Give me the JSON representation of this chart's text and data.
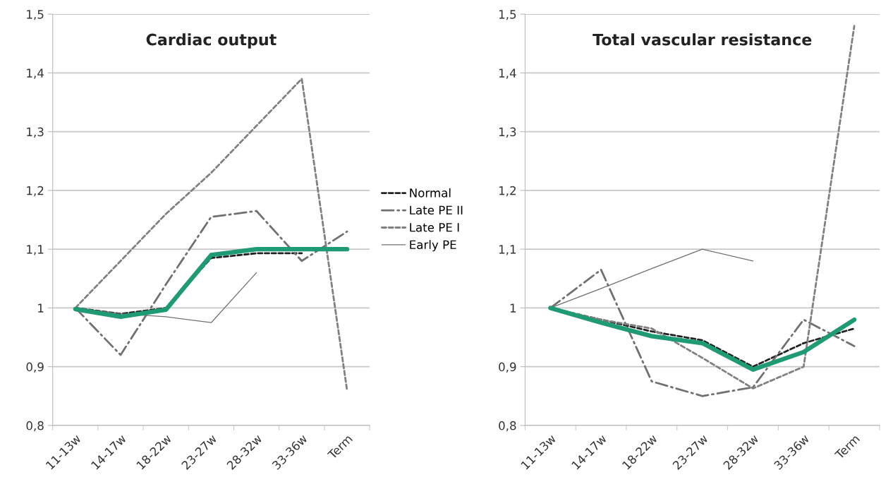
{
  "chart_data": [
    {
      "type": "line",
      "title": "Cardiac output",
      "categories": [
        "11-13w",
        "14-17w",
        "18-22w",
        "23-27w",
        "28-32w",
        "33-36w",
        "Term"
      ],
      "series": [
        {
          "name": "Normal",
          "color": "#222222",
          "line_style": "dashed",
          "values": [
            1.0,
            0.99,
            1.0,
            1.085,
            1.093,
            1.093,
            null
          ]
        },
        {
          "name": "Late PE II",
          "color": "#707070",
          "line_style": "dashdot",
          "values": [
            1.0,
            0.92,
            1.04,
            1.155,
            1.165,
            1.08,
            1.13
          ]
        },
        {
          "name": "Late PE I",
          "color": "#808080",
          "line_style": "dashed",
          "values": [
            1.0,
            1.08,
            1.16,
            1.23,
            1.31,
            1.39,
            0.86
          ]
        },
        {
          "name": "Early PE",
          "color": "#707070",
          "line_style": "solid",
          "values": [
            1.0,
            0.99,
            0.985,
            0.975,
            1.06,
            null,
            null
          ]
        },
        {
          "color": "#1e9b74",
          "line_style": "solid",
          "values": [
            0.998,
            0.985,
            0.997,
            1.09,
            1.1,
            1.1,
            1.1
          ]
        }
      ],
      "ylim": [
        0.8,
        1.5
      ],
      "yticks": [
        {
          "value": 0.8,
          "label": "0,8"
        },
        {
          "value": 0.9,
          "label": "0,9"
        },
        1,
        {
          "value": 1.1,
          "label": "1,1"
        },
        {
          "value": 1.2,
          "label": "1,2"
        },
        {
          "value": 1.3,
          "label": "1,3"
        },
        {
          "value": 1.4,
          "label": "1,4"
        },
        {
          "value": 1.5,
          "label": "1,5"
        }
      ],
      "grid": "y",
      "legend": "right",
      "marker": "none"
    },
    {
      "type": "line",
      "title": "Total vascular resistance",
      "categories": [
        "11-13w",
        "14-17w",
        "18-22w",
        "23-27w",
        "28-32w",
        "33-36w",
        "Term"
      ],
      "series": [
        {
          "color": "#222222",
          "line_style": "dashed",
          "values": [
            1.0,
            0.98,
            0.96,
            0.945,
            0.9,
            0.94,
            0.965
          ]
        },
        {
          "color": "#707070",
          "line_style": "dashdot",
          "values": [
            1.0,
            1.065,
            0.875,
            0.85,
            0.865,
            0.98,
            0.935
          ]
        },
        {
          "color": "#808080",
          "line_style": "dashed",
          "values": [
            1.0,
            0.98,
            0.965,
            0.915,
            0.863,
            0.9,
            1.48
          ]
        },
        {
          "color": "#707070",
          "line_style": "solid",
          "values": [
            1.0,
            1.033,
            1.067,
            1.1,
            1.08,
            null,
            null
          ]
        },
        {
          "color": "#1e9b74",
          "line_style": "solid",
          "values": [
            1.0,
            0.975,
            0.952,
            0.94,
            0.895,
            0.925,
            0.98
          ]
        }
      ],
      "ylim": [
        0.8,
        1.5
      ],
      "yticks": [
        {
          "value": 0.8,
          "label": "0,8"
        },
        {
          "value": 0.9,
          "label": "0,9"
        },
        1,
        {
          "value": 1.1,
          "label": "1,1"
        },
        {
          "value": 1.2,
          "label": "1,2"
        },
        {
          "value": 1.3,
          "label": "1,3"
        },
        {
          "value": 1.4,
          "label": "1,4"
        },
        {
          "value": 1.5,
          "label": "1,5"
        }
      ],
      "grid": "y",
      "marker": "none"
    }
  ]
}
